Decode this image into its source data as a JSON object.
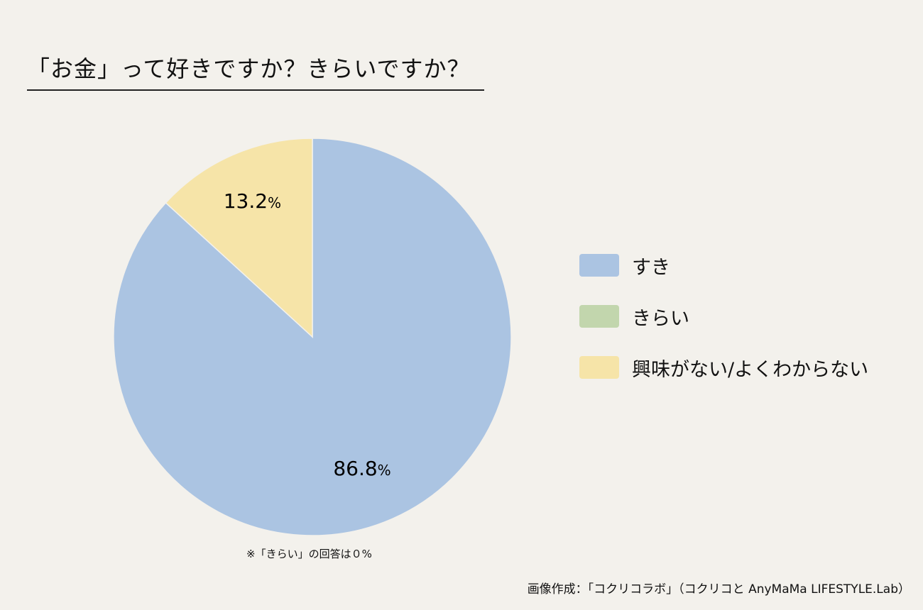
{
  "chart_data": {
    "type": "pie",
    "title": "「お金」って好きですか？きらいですか？",
    "series": [
      {
        "name": "すき",
        "value": 86.8,
        "label": "86.8",
        "color": "#abc4e2"
      },
      {
        "name": "きらい",
        "value": 0,
        "label": "",
        "color": "#c2d6ad"
      },
      {
        "name": "興味がない/よくわからない",
        "value": 13.2,
        "label": "13.2",
        "color": "#f6e4a8"
      }
    ],
    "unit": "%",
    "legend_position": "right",
    "note": "※「きらい」の回答は０%"
  },
  "credit": "画像作成：「コクリコラボ」（コクリコと AnyMaMa LIFESTYLE.Lab）"
}
